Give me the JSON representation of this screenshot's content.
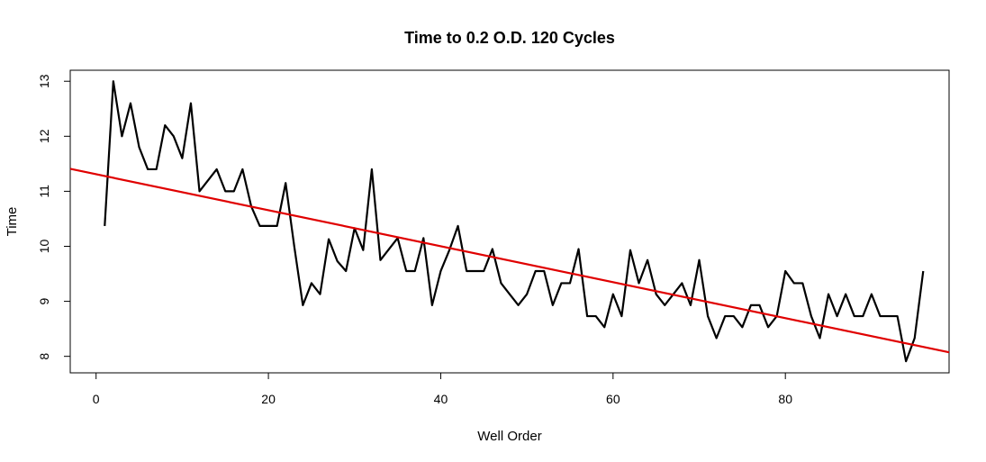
{
  "chart_data": {
    "type": "line",
    "title": "Time to 0.2 O.D. 120 Cycles",
    "xlabel": "Well Order",
    "ylabel": "Time",
    "xlim": [
      -3,
      99
    ],
    "ylim": [
      7.7,
      13.2
    ],
    "x_ticks": [
      0,
      20,
      40,
      60,
      80
    ],
    "y_ticks": [
      8,
      9,
      10,
      11,
      12,
      13
    ],
    "x_tick_labels": [
      "0",
      "20",
      "40",
      "60",
      "80"
    ],
    "y_tick_labels": [
      "8",
      "9",
      "10",
      "11",
      "12",
      "13"
    ],
    "grid": false,
    "legend": "none",
    "colors": {
      "series": "#000000",
      "trend": "#e00000"
    },
    "series": [
      {
        "x": [
          1,
          2,
          3,
          4,
          5,
          6,
          7,
          8,
          9,
          10,
          11,
          12,
          13,
          14,
          15,
          16,
          17,
          18,
          19,
          20,
          21,
          22,
          23,
          24,
          25,
          26,
          27,
          28,
          29,
          30,
          31,
          32,
          33,
          34,
          35,
          36,
          37,
          38,
          39,
          40,
          41,
          42,
          43,
          44,
          45,
          46,
          47,
          48,
          49,
          50,
          51,
          52,
          53,
          54,
          55,
          56,
          57,
          58,
          59,
          60,
          61,
          62,
          63,
          64,
          65,
          66,
          67,
          68,
          69,
          70,
          71,
          72,
          73,
          74,
          75,
          76,
          77,
          78,
          79,
          80,
          81,
          82,
          83,
          84,
          85,
          86,
          87,
          88,
          89,
          90,
          91,
          92,
          93,
          94,
          95,
          96
        ],
        "values": [
          10.37,
          13.0,
          12.0,
          12.6,
          11.8,
          11.4,
          11.4,
          12.2,
          12.0,
          11.6,
          12.6,
          11.0,
          11.2,
          11.4,
          11.0,
          11.0,
          11.4,
          10.73,
          10.37,
          10.37,
          10.37,
          11.15,
          10.0,
          8.93,
          9.33,
          9.13,
          10.13,
          9.73,
          9.55,
          10.33,
          9.93,
          11.4,
          9.75,
          9.95,
          10.15,
          9.55,
          9.55,
          10.15,
          8.93,
          9.55,
          9.93,
          10.37,
          9.55,
          9.55,
          9.55,
          9.95,
          9.33,
          9.13,
          8.93,
          9.13,
          9.55,
          9.55,
          8.93,
          9.33,
          9.33,
          9.95,
          8.73,
          8.73,
          8.53,
          9.13,
          8.73,
          9.93,
          9.33,
          9.75,
          9.13,
          8.93,
          9.13,
          9.33,
          8.93,
          9.75,
          8.73,
          8.33,
          8.73,
          8.73,
          8.53,
          8.93,
          8.93,
          8.53,
          8.73,
          9.55,
          9.33,
          9.33,
          8.73,
          8.33,
          9.13,
          8.73,
          9.13,
          8.73,
          8.73,
          9.13,
          8.73,
          8.73,
          8.73,
          7.91,
          8.33,
          9.55
        ]
      }
    ],
    "trend_line": {
      "intercept": 11.31,
      "slope": -0.0327
    }
  }
}
